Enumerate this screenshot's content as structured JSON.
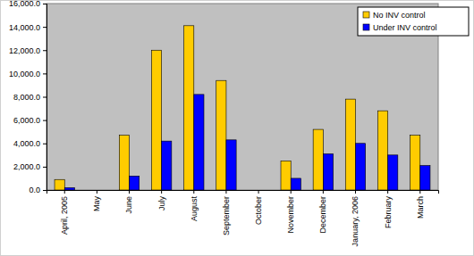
{
  "chart_data": {
    "type": "bar",
    "categories": [
      "April, 2005",
      "May",
      "June",
      "July",
      "August",
      "September",
      "October",
      "November",
      "December",
      "January, 2006",
      "February",
      "March"
    ],
    "series": [
      {
        "name": "No INV control",
        "color": "#ffcc00",
        "values": [
          900,
          0,
          4700,
          12000,
          14100,
          9400,
          0,
          2500,
          5200,
          7800,
          6800,
          4700
        ]
      },
      {
        "name": "Under INV control",
        "color": "#0000ff",
        "values": [
          200,
          0,
          1200,
          4200,
          8200,
          4300,
          0,
          1000,
          3100,
          4000,
          3000,
          2100
        ]
      }
    ],
    "ylim": [
      0,
      16000
    ],
    "yticks": [
      {
        "value": 0,
        "label": "0.0"
      },
      {
        "value": 2000,
        "label": "2,000.0"
      },
      {
        "value": 4000,
        "label": "4,000.0"
      },
      {
        "value": 6000,
        "label": "6,000.0"
      },
      {
        "value": 8000,
        "label": "8,000.0"
      },
      {
        "value": 10000,
        "label": "10,000.0"
      },
      {
        "value": 12000,
        "label": "12,000.0"
      },
      {
        "value": 14000,
        "label": "14,000.0"
      },
      {
        "value": 16000,
        "label": "16,000.0"
      }
    ],
    "grid": false,
    "legend": "top-right"
  }
}
